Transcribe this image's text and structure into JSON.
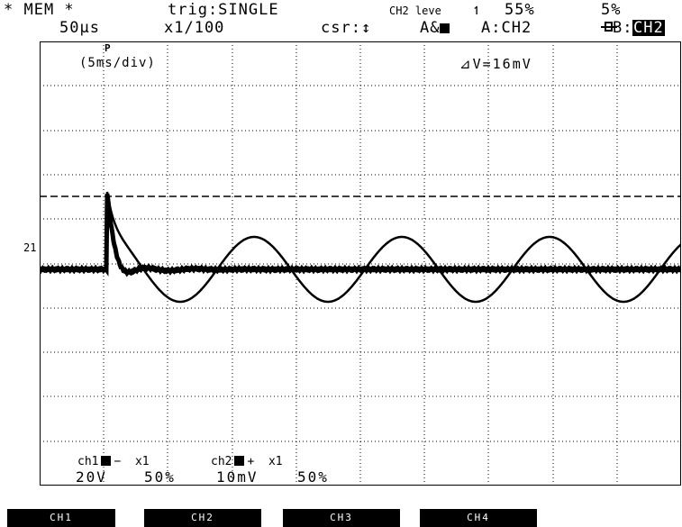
{
  "header": {
    "mode": "* MEM *",
    "trigger": "trig:SINGLE",
    "trigger_source": "CH2 leve",
    "trigger_slope": "↿",
    "trigger_level": "55%",
    "pretrig_icon": "pretrigger-icon",
    "pretrig_value": "5%",
    "sample_rate": "50µs",
    "zoom": "x1/100",
    "cursor": "csr:↕",
    "cursor_ab_label": "A&",
    "cursor_a": "A:CH2",
    "cursor_b_label": "B:",
    "cursor_b": "CH2"
  },
  "screen": {
    "timebase": "(5ms/div)",
    "delta_v": "⊿V=16mV",
    "marker_label": "21",
    "cursor_marker": "P"
  },
  "channels": {
    "ch1_label": "ch1",
    "ch1_sign": "−",
    "ch1_probe": "x1",
    "ch1_volts": "20V",
    "ch1_pos": "50%",
    "ch2_label": "ch2",
    "ch2_sign": "+",
    "ch2_probe": "x1",
    "ch2_volts": "10mV",
    "ch2_pos": "50%"
  },
  "softkeys": [
    "CH1",
    "CH2",
    "CH3",
    "CH4"
  ],
  "colors": {
    "trace": "#000000",
    "background": "#ffffff",
    "grid": "#000000"
  }
}
